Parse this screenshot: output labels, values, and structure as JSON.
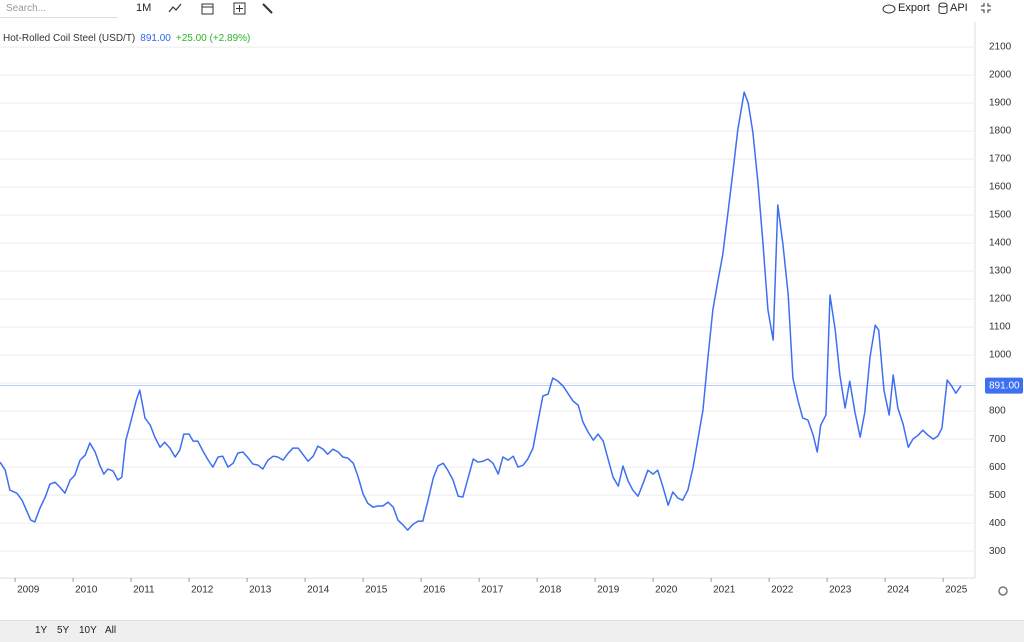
{
  "toolbar": {
    "search": "Search...",
    "interval": "1M",
    "export": "Export",
    "api": "API"
  },
  "chart_data": {
    "type": "line",
    "title": "Hot-Rolled Coil Steel (USD/T)",
    "price_label": "891.00",
    "change": "+25.00 (+2.89%)",
    "x": [
      2008.74,
      2008.83,
      2008.91,
      2009.03,
      2009.12,
      2009.21,
      2009.27,
      2009.34,
      2009.43,
      2009.52,
      2009.6,
      2009.69,
      2009.77,
      2009.86,
      2009.95,
      2010.03,
      2010.12,
      2010.21,
      2010.29,
      2010.38,
      2010.46,
      2010.53,
      2010.6,
      2010.69,
      2010.77,
      2010.84,
      2010.91,
      2010.98,
      2011.09,
      2011.15,
      2011.24,
      2011.33,
      2011.41,
      2011.5,
      2011.58,
      2011.67,
      2011.76,
      2011.84,
      2011.91,
      2012.0,
      2012.07,
      2012.15,
      2012.24,
      2012.33,
      2012.41,
      2012.5,
      2012.58,
      2012.67,
      2012.76,
      2012.84,
      2012.93,
      2013.02,
      2013.1,
      2013.19,
      2013.27,
      2013.36,
      2013.45,
      2013.53,
      2013.62,
      2013.71,
      2013.79,
      2013.88,
      2013.96,
      2014.05,
      2014.14,
      2014.22,
      2014.31,
      2014.39,
      2014.48,
      2014.57,
      2014.65,
      2014.74,
      2014.83,
      2014.91,
      2015.0,
      2015.08,
      2015.17,
      2015.26,
      2015.34,
      2015.43,
      2015.52,
      2015.6,
      2015.69,
      2015.77,
      2015.86,
      2015.95,
      2016.03,
      2016.12,
      2016.21,
      2016.29,
      2016.38,
      2016.46,
      2016.55,
      2016.64,
      2016.72,
      2016.81,
      2016.9,
      2016.98,
      2017.07,
      2017.15,
      2017.24,
      2017.33,
      2017.41,
      2017.5,
      2017.59,
      2017.67,
      2017.76,
      2017.84,
      2017.93,
      2018.02,
      2018.1,
      2018.19,
      2018.27,
      2018.36,
      2018.45,
      2018.53,
      2018.62,
      2018.71,
      2018.79,
      2018.88,
      2018.97,
      2019.05,
      2019.14,
      2019.22,
      2019.31,
      2019.4,
      2019.48,
      2019.57,
      2019.65,
      2019.74,
      2019.83,
      2019.91,
      2020.0,
      2020.08,
      2020.17,
      2020.26,
      2020.34,
      2020.43,
      2020.51,
      2020.6,
      2020.69,
      2020.77,
      2020.86,
      2020.95,
      2021.03,
      2021.12,
      2021.2,
      2021.29,
      2021.38,
      2021.46,
      2021.57,
      2021.64,
      2021.72,
      2021.81,
      2021.89,
      2021.98,
      2022.07,
      2022.15,
      2022.24,
      2022.33,
      2022.41,
      2022.5,
      2022.58,
      2022.67,
      2022.76,
      2022.83,
      2022.89,
      2022.98,
      2023.05,
      2023.14,
      2023.22,
      2023.31,
      2023.39,
      2023.48,
      2023.57,
      2023.65,
      2023.74,
      2023.83,
      2023.89,
      2023.98,
      2024.07,
      2024.14,
      2024.22,
      2024.31,
      2024.4,
      2024.48,
      2024.57,
      2024.65,
      2024.74,
      2024.83,
      2024.91,
      2024.98,
      2025.07,
      2025.15,
      2025.22,
      2025.31
    ],
    "series": [
      {
        "name": "Hot-Rolled Coil Steel",
        "color": "#3d6ff2",
        "values": [
          618,
          589,
          518,
          507,
          482,
          439,
          411,
          404,
          454,
          493,
          539,
          546,
          529,
          507,
          554,
          571,
          625,
          643,
          686,
          654,
          607,
          575,
          593,
          586,
          554,
          564,
          696,
          750,
          839,
          875,
          775,
          750,
          707,
          671,
          689,
          668,
          636,
          661,
          718,
          718,
          693,
          693,
          657,
          625,
          600,
          636,
          639,
          600,
          614,
          650,
          654,
          632,
          611,
          607,
          593,
          625,
          639,
          636,
          625,
          650,
          668,
          668,
          646,
          621,
          639,
          675,
          664,
          646,
          664,
          654,
          636,
          632,
          614,
          568,
          504,
          471,
          457,
          461,
          461,
          475,
          457,
          411,
          393,
          375,
          396,
          407,
          407,
          482,
          561,
          604,
          614,
          589,
          554,
          496,
          493,
          561,
          629,
          618,
          621,
          629,
          614,
          575,
          636,
          625,
          639,
          600,
          607,
          629,
          668,
          768,
          854,
          861,
          918,
          907,
          889,
          864,
          836,
          821,
          761,
          725,
          696,
          718,
          693,
          632,
          564,
          532,
          604,
          550,
          518,
          496,
          543,
          589,
          575,
          589,
          529,
          464,
          511,
          489,
          482,
          518,
          600,
          696,
          804,
          1000,
          1161,
          1268,
          1357,
          1507,
          1661,
          1804,
          1939,
          1900,
          1796,
          1611,
          1411,
          1161,
          1054,
          1536,
          1393,
          1214,
          918,
          836,
          775,
          768,
          714,
          654,
          750,
          786,
          1214,
          1089,
          929,
          811,
          907,
          796,
          707,
          796,
          993,
          1107,
          1089,
          875,
          786,
          929,
          811,
          754,
          671,
          700,
          714,
          732,
          714,
          700,
          711,
          739,
          911,
          889,
          864,
          891
        ]
      }
    ],
    "xlim": [
      2008.74,
      2025.55
    ],
    "ylim": [
      204,
      2161
    ],
    "xticks": [
      2009,
      2010,
      2011,
      2012,
      2013,
      2014,
      2015,
      2016,
      2017,
      2018,
      2019,
      2020,
      2021,
      2022,
      2023,
      2024,
      2025
    ],
    "yticks": [
      300,
      400,
      500,
      600,
      700,
      800,
      900,
      1000,
      1100,
      1200,
      1300,
      1400,
      1500,
      1600,
      1700,
      1800,
      1900,
      2000,
      2100
    ],
    "grid": true
  },
  "range_buttons": [
    "1Y",
    "5Y",
    "10Y",
    "All"
  ]
}
